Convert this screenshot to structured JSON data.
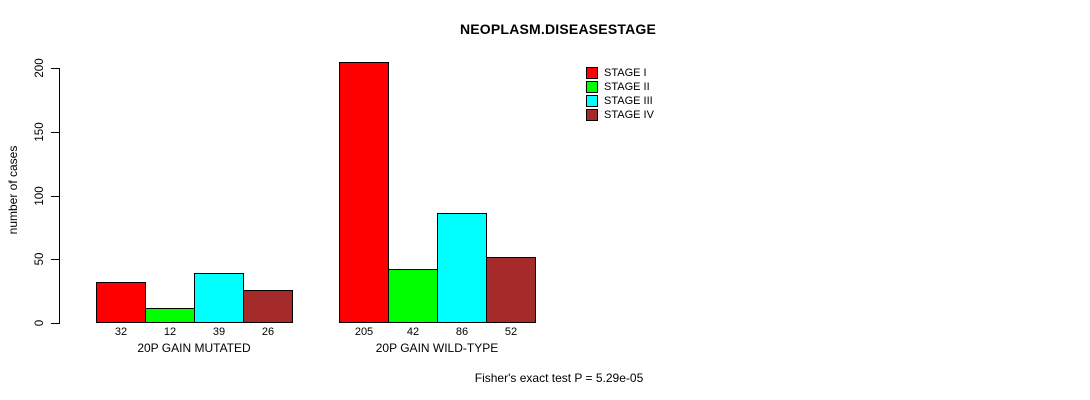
{
  "chart_data": {
    "type": "bar",
    "title": "NEOPLASM.DISEASESTAGE",
    "ylabel": "number of cases",
    "xlabel": "",
    "ylim": [
      0,
      200
    ],
    "yticks": [
      0,
      50,
      100,
      150,
      200
    ],
    "grid": false,
    "categories": [
      "20P GAIN MUTATED",
      "20P GAIN WILD-TYPE"
    ],
    "series": [
      {
        "name": "STAGE I",
        "color": "#FF0000",
        "values": [
          32,
          205
        ]
      },
      {
        "name": "STAGE II",
        "color": "#00FF00",
        "values": [
          12,
          42
        ]
      },
      {
        "name": "STAGE III",
        "color": "#00FFFF",
        "values": [
          39,
          86
        ]
      },
      {
        "name": "STAGE IV",
        "color": "#A52A2A",
        "values": [
          26,
          52
        ]
      }
    ],
    "show_bar_values": true,
    "legend": {
      "position": "top-right",
      "entries": [
        "STAGE I",
        "STAGE II",
        "STAGE III",
        "STAGE IV"
      ]
    },
    "annotation": "Fisher's exact test P = 5.29e-05",
    "colors": {
      "bar_border": "#000000",
      "axis": "#000000",
      "text": "#000000",
      "background": "#FFFFFF"
    }
  }
}
